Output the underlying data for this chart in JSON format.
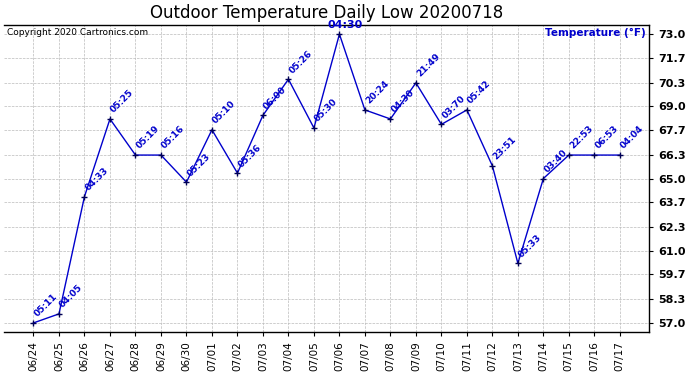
{
  "title": "Outdoor Temperature Daily Low 20200718",
  "copyright": "Copyright 2020 Cartronics.com",
  "ylabel": "Temperature (°F)",
  "dates": [
    "06/24",
    "06/25",
    "06/26",
    "06/27",
    "06/28",
    "06/29",
    "06/30",
    "07/01",
    "07/02",
    "07/03",
    "07/04",
    "07/05",
    "07/06",
    "07/07",
    "07/08",
    "07/09",
    "07/10",
    "07/11",
    "07/12",
    "07/13",
    "07/14",
    "07/15",
    "07/16",
    "07/17"
  ],
  "temps": [
    57.0,
    57.5,
    64.0,
    68.3,
    66.3,
    66.3,
    64.8,
    67.7,
    65.3,
    68.5,
    70.5,
    67.8,
    73.0,
    68.8,
    68.3,
    70.3,
    68.0,
    68.8,
    65.7,
    60.3,
    65.0,
    66.3,
    66.3,
    66.3
  ],
  "time_labels": [
    "05:11",
    "04:05",
    "04:33",
    "05:25",
    "05:19",
    "05:16",
    "05:23",
    "05:10",
    "05:36",
    "06:00",
    "05:26",
    "05:30",
    "04:30",
    "20:24",
    "04:30",
    "21:49",
    "03:70",
    "05:42",
    "23:51",
    "05:33",
    "03:40",
    "22:53",
    "06:53",
    "04:04"
  ],
  "line_color": "#0000cc",
  "marker_color": "#000080",
  "text_color": "#0000cc",
  "bg_color": "#ffffff",
  "grid_color": "#bbbbbb",
  "ylim_min": 57.0,
  "ylim_max": 73.0,
  "yticks": [
    57.0,
    58.3,
    59.7,
    61.0,
    62.3,
    63.7,
    65.0,
    66.3,
    67.7,
    69.0,
    70.3,
    71.7,
    73.0
  ],
  "title_fontsize": 12,
  "label_fontsize": 6.5,
  "axis_fontsize": 7.5,
  "highlight_index": 12
}
